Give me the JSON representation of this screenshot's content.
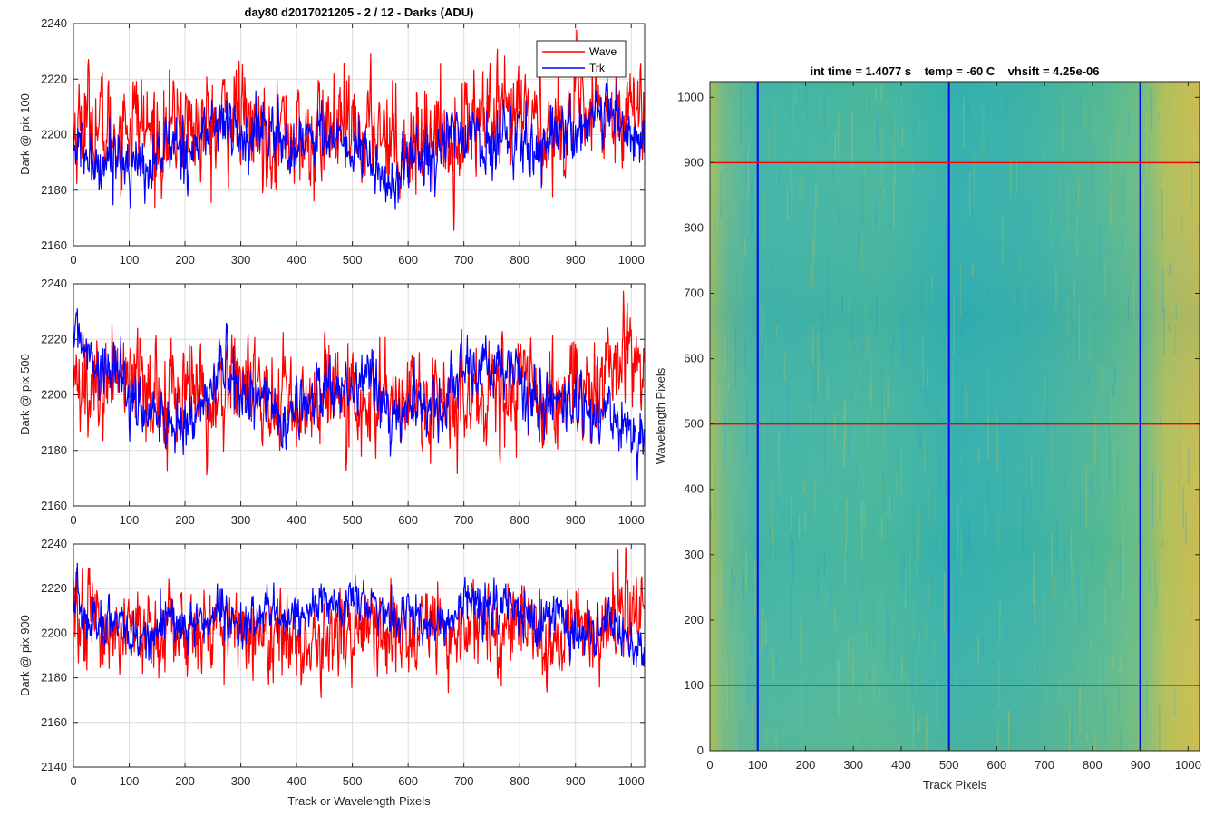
{
  "figure_title": "day80 d2017021205 - 2 / 12 - Darks (ADU)",
  "chart_data": [
    {
      "type": "line",
      "id": "top",
      "title": "day80 d2017021205 - 2 / 12 - Darks (ADU)",
      "xlabel": "",
      "ylabel": "Dark @ pix 100",
      "xlim": [
        0,
        1024
      ],
      "ylim": [
        2160,
        2240
      ],
      "xticks": [
        "0",
        "100",
        "200",
        "300",
        "400",
        "500",
        "600",
        "700",
        "800",
        "900",
        "1000"
      ],
      "yticks": [
        "2160",
        "2180",
        "2200",
        "2220",
        "2240"
      ],
      "grid": true,
      "legend": {
        "position": "top-right",
        "entries": [
          "Wave",
          "Trk"
        ]
      },
      "series": [
        {
          "name": "Wave",
          "color": "#ff0000",
          "mean": 2202,
          "noise": 9,
          "drift": [
            2201,
            2202,
            2203,
            2203,
            2201,
            2200,
            2199,
            2201,
            2203,
            2205,
            2207,
            2206
          ]
        },
        {
          "name": "Trk",
          "color": "#0000ff",
          "mean": 2196,
          "noise": 5,
          "drift": [
            2192,
            2190,
            2196,
            2201,
            2200,
            2198,
            2184,
            2198,
            2197,
            2200,
            2203,
            2200
          ]
        }
      ]
    },
    {
      "type": "line",
      "id": "mid",
      "title": "",
      "xlabel": "",
      "ylabel": "Dark @ pix 500",
      "xlim": [
        0,
        1024
      ],
      "ylim": [
        2160,
        2240
      ],
      "xticks": [
        "0",
        "100",
        "200",
        "300",
        "400",
        "500",
        "600",
        "700",
        "800",
        "900",
        "1000"
      ],
      "yticks": [
        "2160",
        "2180",
        "2200",
        "2220",
        "2240"
      ],
      "grid": true,
      "series": [
        {
          "name": "Wave",
          "color": "#ff0000",
          "mean": 2201,
          "noise": 9,
          "drift": [
            2203,
            2204,
            2202,
            2200,
            2200,
            2198,
            2197,
            2198,
            2199,
            2201,
            2205,
            2210
          ]
        },
        {
          "name": "Trk",
          "color": "#0000ff",
          "mean": 2200,
          "noise": 5,
          "drift": [
            2220,
            2204,
            2186,
            2206,
            2192,
            2204,
            2198,
            2196,
            2212,
            2200,
            2192,
            2186
          ]
        }
      ]
    },
    {
      "type": "line",
      "id": "bottom",
      "title": "",
      "xlabel": "Track or Wavelength Pixels",
      "ylabel": "Dark @ pix 900",
      "xlim": [
        0,
        1024
      ],
      "ylim": [
        2140,
        2240
      ],
      "xticks": [
        "0",
        "100",
        "200",
        "300",
        "400",
        "500",
        "600",
        "700",
        "800",
        "900",
        "1000"
      ],
      "yticks": [
        "2140",
        "2160",
        "2180",
        "2200",
        "2220",
        "2240"
      ],
      "grid": true,
      "series": [
        {
          "name": "Wave",
          "color": "#ff0000",
          "mean": 2201,
          "noise": 9,
          "drift": [
            2205,
            2201,
            2200,
            2201,
            2198,
            2196,
            2199,
            2200,
            2198,
            2200,
            2203,
            2208
          ]
        },
        {
          "name": "Trk",
          "color": "#0000ff",
          "mean": 2206,
          "noise": 5,
          "drift": [
            2212,
            2200,
            2204,
            2204,
            2212,
            2210,
            2212,
            2205,
            2212,
            2210,
            2200,
            2196
          ]
        }
      ]
    },
    {
      "type": "heatmap",
      "id": "image",
      "title": "int time = 1.4077 s    temp = -60 C    vhsift = 4.25e-06",
      "xlabel": "Track Pixels",
      "ylabel": "Wavelength Pixels",
      "xlim": [
        0,
        1024
      ],
      "ylim": [
        0,
        1024
      ],
      "xticks": [
        "0",
        "100",
        "200",
        "300",
        "400",
        "500",
        "600",
        "700",
        "800",
        "900",
        "1000"
      ],
      "yticks": [
        "0",
        "100",
        "200",
        "300",
        "400",
        "500",
        "600",
        "700",
        "800",
        "900",
        "1000"
      ],
      "colormap": "parula",
      "vertical_markers": {
        "values": [
          100,
          500,
          900
        ],
        "color": "#0000ff"
      },
      "horizontal_markers": {
        "values": [
          100,
          500,
          900
        ],
        "color": "#ff0000"
      }
    }
  ]
}
